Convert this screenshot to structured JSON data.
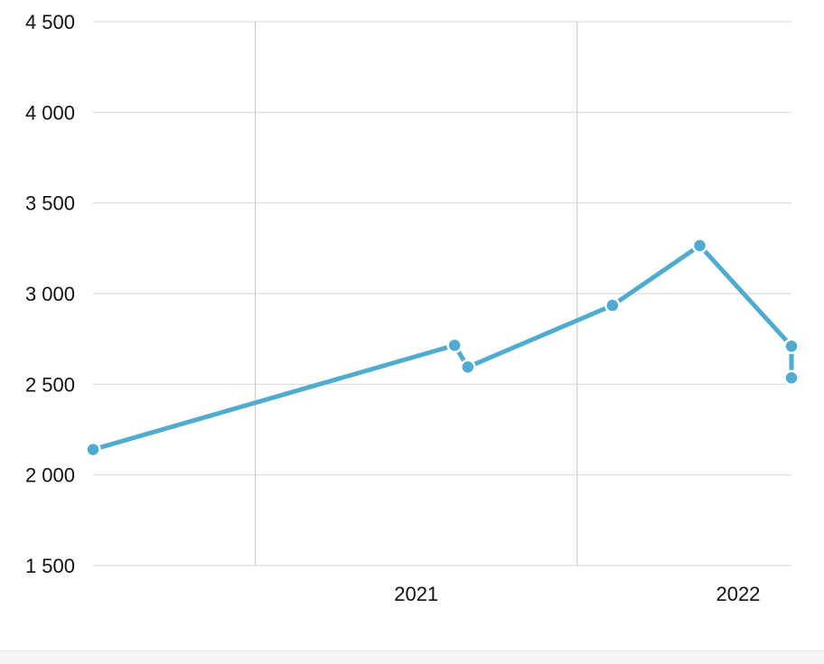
{
  "chart_data": {
    "type": "line",
    "title": "",
    "xlabel": "",
    "ylabel": "",
    "x_ticks": [
      "2021",
      "2022"
    ],
    "y_ticks": [
      "1 500",
      "2 000",
      "2 500",
      "3 000",
      "3 500",
      "4 000",
      "4 500"
    ],
    "ylim": [
      1500,
      4500
    ],
    "xlim": [
      "2020-07-01",
      "2022-09-01"
    ],
    "grid": true,
    "legend": "none",
    "color": "#4fabd0",
    "series": [
      {
        "points": [
          {
            "x": "2020-07-01",
            "y": 2140
          },
          {
            "x": "2021-08-15",
            "y": 2715
          },
          {
            "x": "2021-08-30",
            "y": 2595
          },
          {
            "x": "2022-02-10",
            "y": 2935
          },
          {
            "x": "2022-05-20",
            "y": 3265
          },
          {
            "x": "2022-09-01",
            "y": 2710
          },
          {
            "x": "2022-09-01",
            "y": 2535
          }
        ]
      }
    ]
  }
}
